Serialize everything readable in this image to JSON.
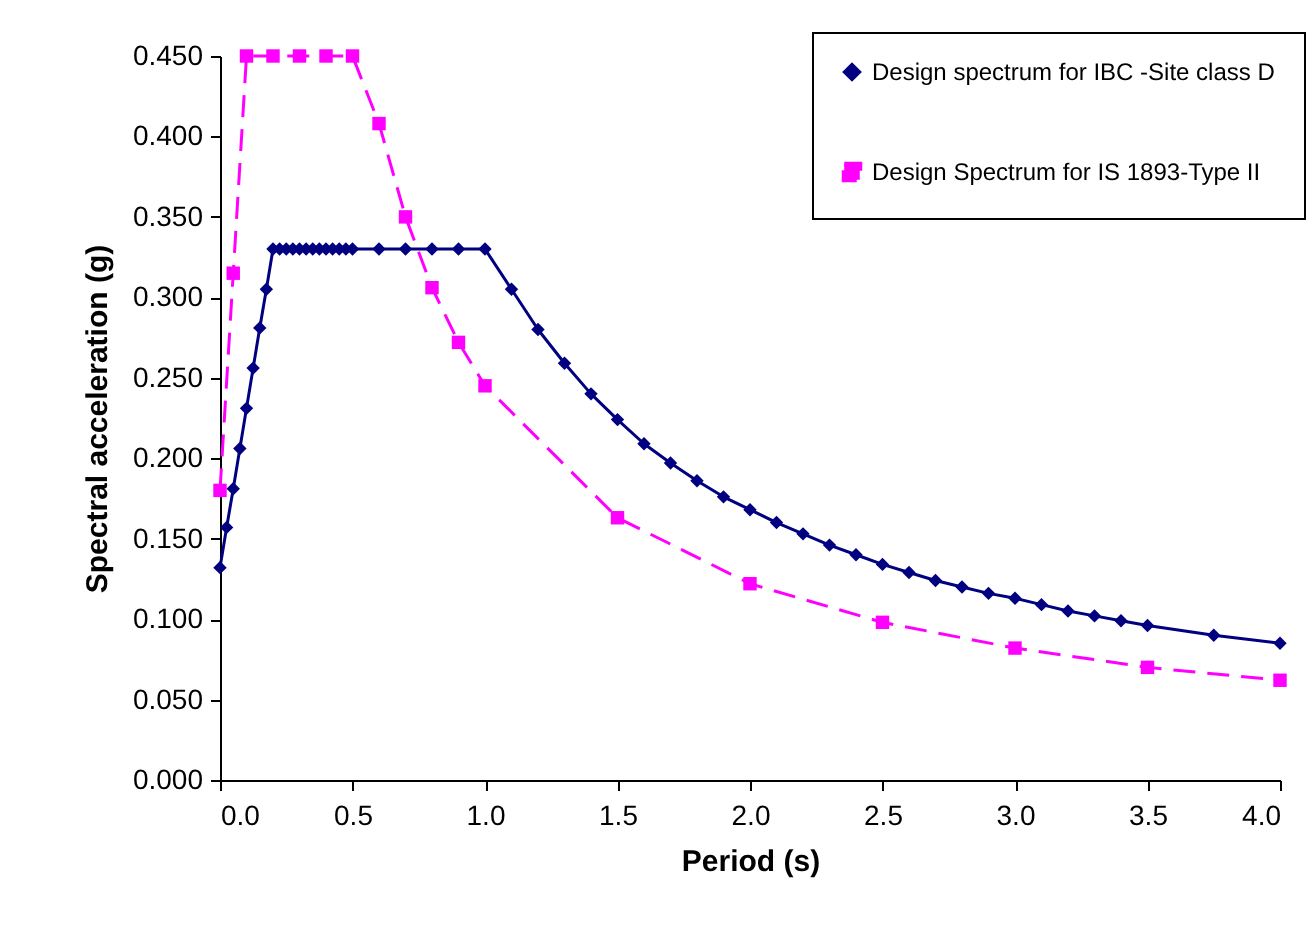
{
  "chart_data": {
    "type": "line",
    "xlabel": "Period (s)",
    "ylabel": "Spectral acceleration (g)",
    "xlim": [
      0,
      4
    ],
    "xticks": [
      {
        "value": 0,
        "label": "0.0"
      },
      {
        "value": 0.5,
        "label": "0.5"
      },
      {
        "value": 1,
        "label": "1.0"
      },
      {
        "value": 1.5,
        "label": "1.5"
      },
      {
        "value": 2,
        "label": "2.0"
      },
      {
        "value": 2.5,
        "label": "2.5"
      },
      {
        "value": 3,
        "label": "3.0"
      },
      {
        "value": 3.5,
        "label": "3.5"
      },
      {
        "value": 4,
        "label": "4.0"
      }
    ],
    "ylim": [
      0,
      0.45
    ],
    "yticks": [
      {
        "value": 0,
        "label": "0.000"
      },
      {
        "value": 0.05,
        "label": "0.050"
      },
      {
        "value": 0.1,
        "label": "0.100"
      },
      {
        "value": 0.15,
        "label": "0.150"
      },
      {
        "value": 0.2,
        "label": "0.200"
      },
      {
        "value": 0.25,
        "label": "0.250"
      },
      {
        "value": 0.3,
        "label": "0.300"
      },
      {
        "value": 0.35,
        "label": "0.350"
      },
      {
        "value": 0.4,
        "label": "0.400"
      },
      {
        "value": 0.45,
        "label": "0.450"
      }
    ],
    "grid": false,
    "legend": "top right",
    "series": [
      {
        "name": "Design spectrum for IBC -Site class D",
        "color": "#000080",
        "marker": "diamond",
        "line_style": "solid",
        "x": [
          0,
          0.025,
          0.05,
          0.075,
          0.1,
          0.125,
          0.15,
          0.175,
          0.2,
          0.225,
          0.25,
          0.275,
          0.3,
          0.325,
          0.35,
          0.375,
          0.4,
          0.425,
          0.45,
          0.475,
          0.5,
          0.6,
          0.7,
          0.8,
          0.9,
          1.0,
          1.1,
          1.2,
          1.3,
          1.4,
          1.5,
          1.6,
          1.7,
          1.8,
          1.9,
          2.0,
          2.1,
          2.2,
          2.3,
          2.4,
          2.5,
          2.6,
          2.7,
          2.8,
          2.9,
          3.0,
          3.1,
          3.2,
          3.3,
          3.4,
          3.5,
          3.75,
          4.0
        ],
        "values": [
          0.132,
          0.157,
          0.181,
          0.206,
          0.231,
          0.256,
          0.281,
          0.305,
          0.33,
          0.33,
          0.33,
          0.33,
          0.33,
          0.33,
          0.33,
          0.33,
          0.33,
          0.33,
          0.33,
          0.33,
          0.33,
          0.33,
          0.33,
          0.33,
          0.33,
          0.33,
          0.305,
          0.28,
          0.259,
          0.24,
          0.224,
          0.209,
          0.197,
          0.186,
          0.176,
          0.168,
          0.16,
          0.153,
          0.146,
          0.14,
          0.134,
          0.129,
          0.124,
          0.12,
          0.116,
          0.113,
          0.109,
          0.105,
          0.102,
          0.099,
          0.096,
          0.09,
          0.085
        ]
      },
      {
        "name": "Design Spectrum for IS 1893-Type II",
        "color": "#ff00ff",
        "marker": "square",
        "line_style": "dashed",
        "x": [
          0,
          0.05,
          0.1,
          0.2,
          0.3,
          0.4,
          0.5,
          0.6,
          0.7,
          0.8,
          0.9,
          1.0,
          1.5,
          2.0,
          2.5,
          3.0,
          3.5,
          4.0
        ],
        "values": [
          0.18,
          0.315,
          0.45,
          0.45,
          0.45,
          0.45,
          0.45,
          0.408,
          0.35,
          0.306,
          0.272,
          0.245,
          0.163,
          0.122,
          0.098,
          0.082,
          0.07,
          0.062
        ]
      }
    ]
  }
}
